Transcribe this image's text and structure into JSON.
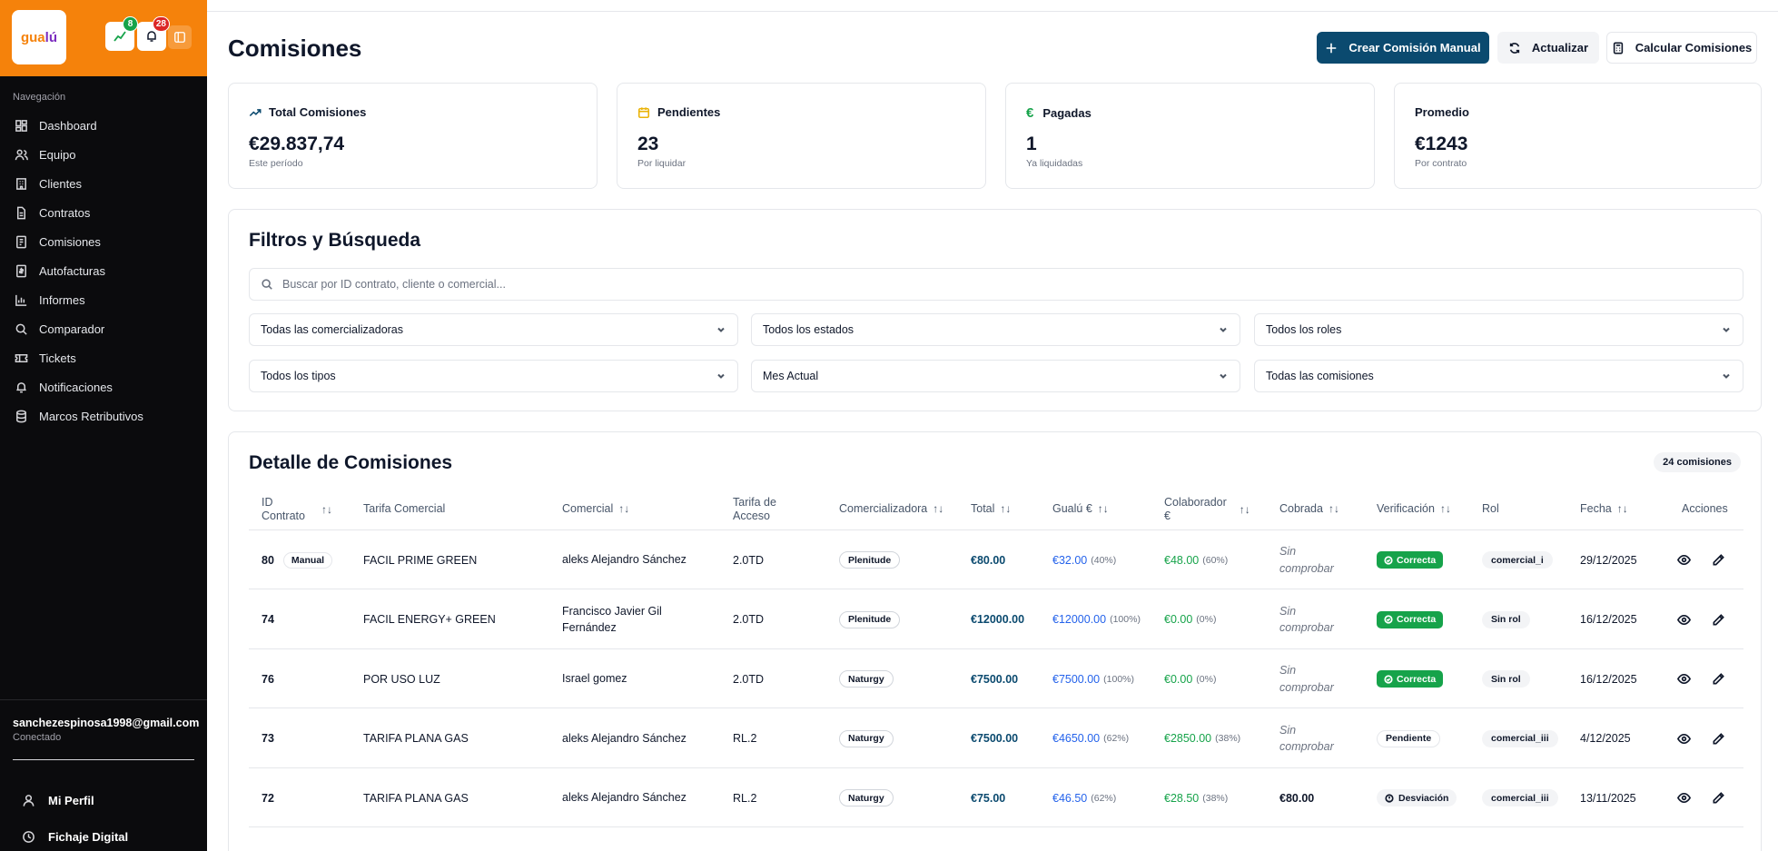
{
  "brand": {
    "logo_text_a": "gua",
    "logo_text_b": "lú"
  },
  "header_buttons": {
    "badge1": "8",
    "badge2": "28"
  },
  "sidebar": {
    "nav_heading": "Navegación",
    "items": [
      {
        "label": "Dashboard",
        "icon": "dashboard-icon"
      },
      {
        "label": "Equipo",
        "icon": "users-icon"
      },
      {
        "label": "Clientes",
        "icon": "building-icon"
      },
      {
        "label": "Contratos",
        "icon": "file-icon"
      },
      {
        "label": "Comisiones",
        "icon": "receipt-icon"
      },
      {
        "label": "Autofacturas",
        "icon": "invoice-icon"
      },
      {
        "label": "Informes",
        "icon": "bar-chart-icon"
      },
      {
        "label": "Comparador",
        "icon": "search-icon"
      },
      {
        "label": "Tickets",
        "icon": "ticket-icon"
      },
      {
        "label": "Notificaciones",
        "icon": "bell-icon"
      },
      {
        "label": "Marcos Retributivos",
        "icon": "database-icon"
      }
    ],
    "user_email": "sanchezespinosa1998@gmail.com",
    "user_status": "Conectado",
    "profile_label": "Mi Perfil",
    "clock_label": "Fichaje Digital"
  },
  "page": {
    "title": "Comisiones",
    "create_label": "Crear Comisión Manual",
    "refresh_label": "Actualizar",
    "calc_label": "Calcular Comisiones"
  },
  "stats": [
    {
      "label": "Total Comisiones",
      "value": "€29.837,74",
      "sub": "Este período",
      "icon": "trending-up-icon",
      "color": "#0b4a6f"
    },
    {
      "label": "Pendientes",
      "value": "23",
      "sub": "Por liquidar",
      "icon": "calendar-icon",
      "color": "#eab308"
    },
    {
      "label": "Pagadas",
      "value": "1",
      "sub": "Ya liquidadas",
      "icon": "euro-icon",
      "color": "#16a34a"
    },
    {
      "label": "Promedio",
      "value": "€1243",
      "sub": "Por contrato"
    }
  ],
  "filters": {
    "title": "Filtros y Búsqueda",
    "search_placeholder": "Buscar por ID contrato, cliente o comercial...",
    "selects": [
      "Todas las comercializadoras",
      "Todos los estados",
      "Todos los roles",
      "Todos los tipos",
      "Mes Actual",
      "Todas las comisiones"
    ]
  },
  "table": {
    "title": "Detalle de Comisiones",
    "count": "24 comisiones",
    "headers": {
      "id_1": "ID",
      "id_2": "Contrato",
      "tarifa": "Tarifa Comercial",
      "comercial": "Comercial",
      "acceso_1": "Tarifa de",
      "acceso_2": "Acceso",
      "comercializadora": "Comercializadora",
      "total": "Total",
      "gualu": "Gualú €",
      "colab_1": "Colaborador",
      "colab_2": "€",
      "cobrada": "Cobrada",
      "verificacion": "Verificación",
      "rol": "Rol",
      "fecha": "Fecha",
      "acciones": "Acciones"
    },
    "sort_glyph": "↑↓",
    "sin_1": "Sin",
    "sin_2": "comprobar",
    "rows": [
      {
        "id": "80",
        "tag": "Manual",
        "tarifa": "FACIL PRIME GREEN",
        "comercial_1": "aleks Alejandro Sánchez",
        "comercial_2": "",
        "acceso": "2.0TD",
        "comercializadora": "Plenitude",
        "total": "€80.00",
        "gualu": "€32.00",
        "gualu_pct": "(40%)",
        "colab": "€48.00",
        "colab_pct": "(60%)",
        "cobrada": "",
        "verif": "Correcta",
        "verif_type": "ok",
        "rol": "comercial_i",
        "fecha": "29/12/2025"
      },
      {
        "id": "74",
        "tag": "",
        "tarifa": "FACIL ENERGY+ GREEN",
        "comercial_1": "Francisco Javier Gil",
        "comercial_2": "Fernández",
        "acceso": "2.0TD",
        "comercializadora": "Plenitude",
        "total": "€12000.00",
        "gualu": "€12000.00",
        "gualu_pct": "(100%)",
        "colab": "€0.00",
        "colab_pct": "(0%)",
        "cobrada": "",
        "verif": "Correcta",
        "verif_type": "ok",
        "rol": "Sin rol",
        "fecha": "16/12/2025"
      },
      {
        "id": "76",
        "tag": "",
        "tarifa": "POR USO LUZ",
        "comercial_1": "Israel gomez",
        "comercial_2": "",
        "acceso": "2.0TD",
        "comercializadora": "Naturgy",
        "total": "€7500.00",
        "gualu": "€7500.00",
        "gualu_pct": "(100%)",
        "colab": "€0.00",
        "colab_pct": "(0%)",
        "cobrada": "",
        "verif": "Correcta",
        "verif_type": "ok",
        "rol": "Sin rol",
        "fecha": "16/12/2025"
      },
      {
        "id": "73",
        "tag": "",
        "tarifa": "TARIFA PLANA GAS",
        "comercial_1": "aleks Alejandro Sánchez",
        "comercial_2": "",
        "acceso": "RL.2",
        "comercializadora": "Naturgy",
        "total": "€7500.00",
        "gualu": "€4650.00",
        "gualu_pct": "(62%)",
        "colab": "€2850.00",
        "colab_pct": "(38%)",
        "cobrada": "",
        "verif": "Pendiente",
        "verif_type": "pend",
        "rol": "comercial_iii",
        "fecha": "4/12/2025"
      },
      {
        "id": "72",
        "tag": "",
        "tarifa": "TARIFA PLANA GAS",
        "comercial_1": "aleks Alejandro Sánchez",
        "comercial_2": "",
        "acceso": "RL.2",
        "comercializadora": "Naturgy",
        "total": "€75.00",
        "gualu": "€46.50",
        "gualu_pct": "(62%)",
        "colab": "€28.50",
        "colab_pct": "(38%)",
        "cobrada": "€80.00",
        "verif": "Desviación",
        "verif_type": "dev",
        "rol": "comercial_iii",
        "fecha": "13/11/2025"
      }
    ]
  }
}
